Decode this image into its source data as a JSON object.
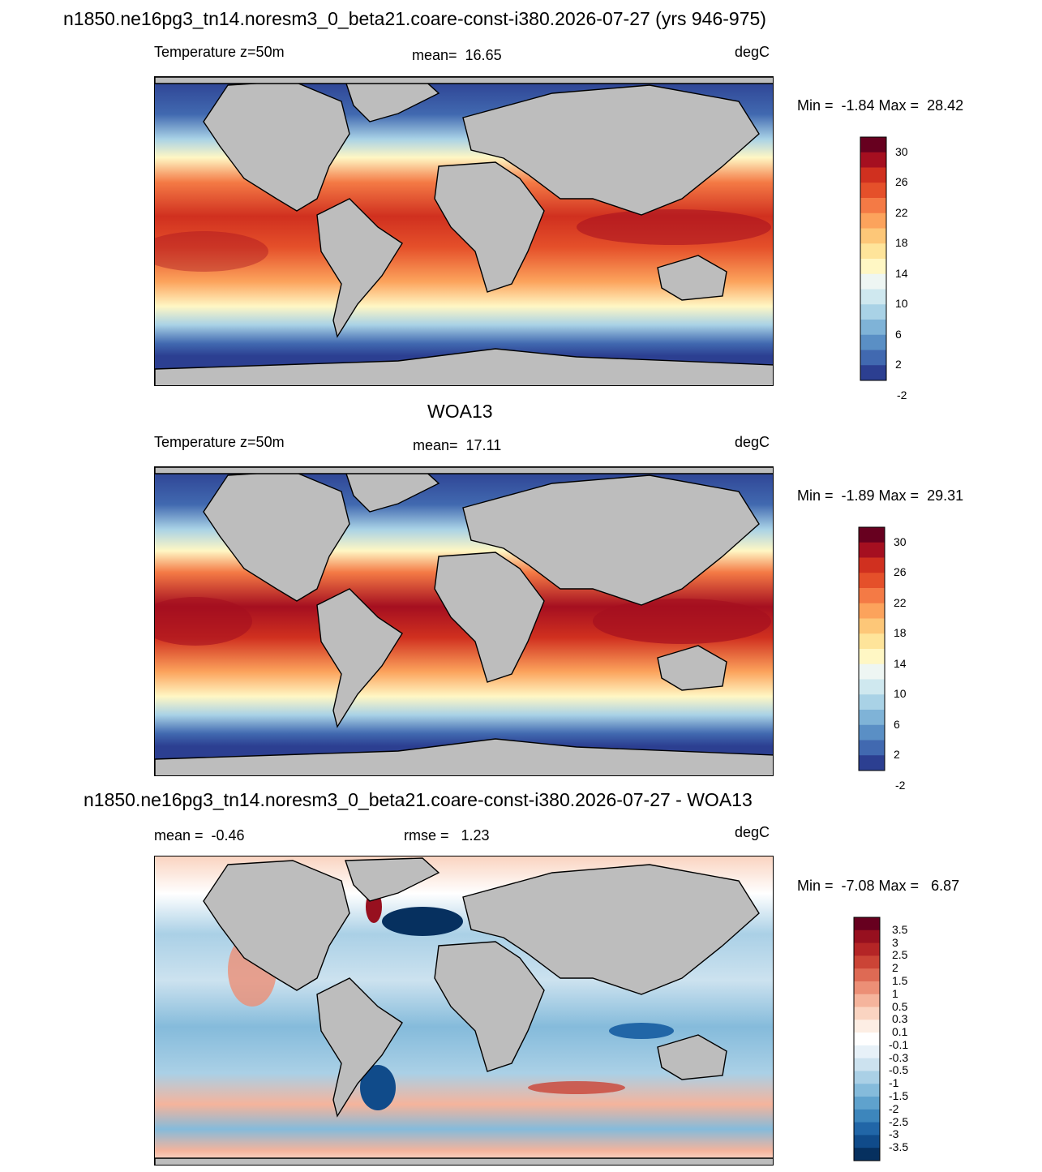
{
  "title": "n1850.ne16pg3_tn14.noresm3_0_beta21.coare-const-i380.2026-07-27 (yrs 946-975)",
  "panels": [
    {
      "id": "model",
      "heading": "",
      "left_label": "Temperature z=50m",
      "center_label": "mean=  16.65",
      "unit_label": "degC",
      "minmax": "Min =  -1.84 Max =  28.42",
      "min": -1.84,
      "max": 28.42,
      "mean": 16.65
    },
    {
      "id": "obs",
      "heading": "WOA13",
      "left_label": "Temperature z=50m",
      "center_label": "mean=  17.11",
      "unit_label": "degC",
      "minmax": "Min =  -1.89 Max =  29.31",
      "min": -1.89,
      "max": 29.31,
      "mean": 17.11
    },
    {
      "id": "diff",
      "heading": "n1850.ne16pg3_tn14.noresm3_0_beta21.coare-const-i380.2026-07-27 - WOA13",
      "left_label": "mean =  -0.46",
      "center_label": "rmse =   1.23",
      "unit_label": "degC",
      "minmax": "Min =  -7.08 Max =   6.87",
      "min": -7.08,
      "max": 6.87,
      "mean": -0.46,
      "rmse": 1.23
    }
  ],
  "colorbars": {
    "temperature": {
      "labels": [
        "30",
        "26",
        "22",
        "18",
        "14",
        "10",
        "6",
        "2",
        "-2"
      ],
      "colors": [
        "#67001f",
        "#a50f20",
        "#d0301f",
        "#e5502a",
        "#f47a45",
        "#fca35c",
        "#fdc778",
        "#fee49a",
        "#fff7c4",
        "#eef6f3",
        "#cfe8ef",
        "#a9d2e6",
        "#7fb3d7",
        "#5a8fc5",
        "#4169b0",
        "#2c3f91"
      ]
    },
    "difference": {
      "labels": [
        "3.5",
        "3",
        "2.5",
        "2",
        "1.5",
        "1",
        "0.5",
        "0.3",
        "0.1",
        "-0.1",
        "-0.3",
        "-0.5",
        "-1",
        "-1.5",
        "-2",
        "-2.5",
        "-3",
        "-3.5"
      ],
      "colors": [
        "#67001f",
        "#97101f",
        "#b42526",
        "#cb4436",
        "#de6a54",
        "#ec8f76",
        "#f5b49c",
        "#fad4c1",
        "#fdeee4",
        "#ffffff",
        "#e7f1f8",
        "#cce2ef",
        "#aad0e6",
        "#85bbdb",
        "#5fa2cd",
        "#3d86bc",
        "#2166a7",
        "#104b8a",
        "#06305f"
      ]
    }
  },
  "colors": {
    "land": "#bdbdbd",
    "coast": "#000000"
  }
}
